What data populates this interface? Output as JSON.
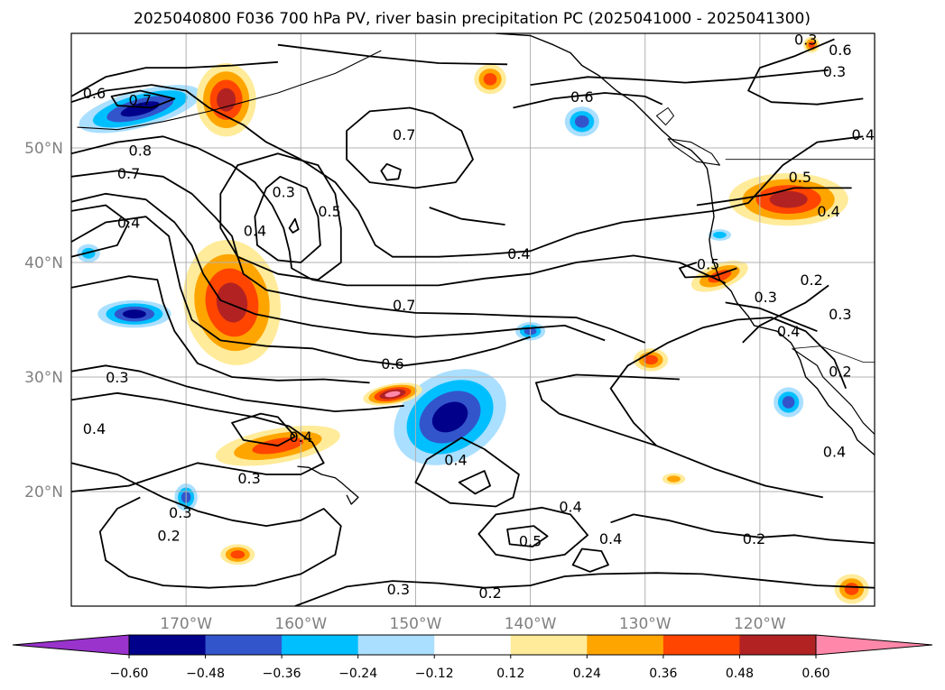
{
  "chart_data": {
    "type": "contour",
    "title": "2025040800 F036 700 hPa PV, river basin precipitation PC (2025041000 - 2025041300)",
    "xlabel": "",
    "ylabel": "",
    "xlim": [
      -180,
      -110
    ],
    "ylim": [
      10,
      60
    ],
    "grid": true,
    "lon_ticks": [
      {
        "value": -170,
        "label": "170°W"
      },
      {
        "value": -160,
        "label": "160°W"
      },
      {
        "value": -150,
        "label": "150°W"
      },
      {
        "value": -140,
        "label": "140°W"
      },
      {
        "value": -130,
        "label": "130°W"
      },
      {
        "value": -120,
        "label": "120°W"
      }
    ],
    "lat_ticks": [
      {
        "value": 50,
        "label": "50°N"
      },
      {
        "value": 40,
        "label": "40°N"
      },
      {
        "value": 30,
        "label": "30°N"
      },
      {
        "value": 20,
        "label": "20°N"
      }
    ],
    "colorbar": {
      "levels": [
        -0.6,
        -0.48,
        -0.36,
        -0.24,
        -0.12,
        0.12,
        0.24,
        0.36,
        0.48,
        0.6
      ],
      "tick_labels": [
        "−0.60",
        "−0.48",
        "−0.36",
        "−0.24",
        "−0.12",
        "0.12",
        "0.24",
        "0.36",
        "0.48",
        "0.60"
      ],
      "colors": [
        "#9933cc",
        "#00008b",
        "#3355cc",
        "#00bfff",
        "#aadfff",
        "#ffffff",
        "#ffeb99",
        "#ffa500",
        "#ff4500",
        "#b22222",
        "#ff88aa"
      ],
      "extend": "both"
    },
    "contour_labels": [
      {
        "text": "0.6",
        "lon": -178,
        "lat": 54.8
      },
      {
        "text": "0.7",
        "lon": -174,
        "lat": 54.2
      },
      {
        "text": "0.8",
        "lon": -174,
        "lat": 49.8
      },
      {
        "text": "0.7",
        "lon": -175,
        "lat": 47.8
      },
      {
        "text": "0.4",
        "lon": -175,
        "lat": 43.5
      },
      {
        "text": "0.3",
        "lon": -161.5,
        "lat": 46.2
      },
      {
        "text": "0.4",
        "lon": -164,
        "lat": 42.8
      },
      {
        "text": "0.5",
        "lon": -157.5,
        "lat": 44.5
      },
      {
        "text": "0.7",
        "lon": -151,
        "lat": 51.2
      },
      {
        "text": "0.6",
        "lon": -135.5,
        "lat": 54.5
      },
      {
        "text": "0.4",
        "lon": -141,
        "lat": 40.8
      },
      {
        "text": "0.7",
        "lon": -151,
        "lat": 36.3
      },
      {
        "text": "0.6",
        "lon": -152,
        "lat": 31.2
      },
      {
        "text": "0.3",
        "lon": -176,
        "lat": 30
      },
      {
        "text": "0.4",
        "lon": -178,
        "lat": 25.5
      },
      {
        "text": "0.4",
        "lon": -160,
        "lat": 24.8
      },
      {
        "text": "0.3",
        "lon": -164.5,
        "lat": 21.2
      },
      {
        "text": "0.3",
        "lon": -170.5,
        "lat": 18.2
      },
      {
        "text": "0.2",
        "lon": -171.5,
        "lat": 16.2
      },
      {
        "text": "0.4",
        "lon": -146.5,
        "lat": 22.8
      },
      {
        "text": "0.4",
        "lon": -136.5,
        "lat": 18.7
      },
      {
        "text": "0.5",
        "lon": -140,
        "lat": 15.7
      },
      {
        "text": "0.4",
        "lon": -133,
        "lat": 15.9
      },
      {
        "text": "0.2",
        "lon": -120.5,
        "lat": 15.9
      },
      {
        "text": "0.3",
        "lon": -151.5,
        "lat": 11.5
      },
      {
        "text": "0.2",
        "lon": -143.5,
        "lat": 11.2
      },
      {
        "text": "0.5",
        "lon": -124.5,
        "lat": 39.9
      },
      {
        "text": "0.3",
        "lon": -119.5,
        "lat": 37
      },
      {
        "text": "0.2",
        "lon": -115.5,
        "lat": 38.5
      },
      {
        "text": "0.4",
        "lon": -117.5,
        "lat": 34
      },
      {
        "text": "0.3",
        "lon": -113,
        "lat": 35.5
      },
      {
        "text": "0.2",
        "lon": -113,
        "lat": 30.5
      },
      {
        "text": "0.4",
        "lon": -113.5,
        "lat": 23.5
      },
      {
        "text": "0.5",
        "lon": -116.5,
        "lat": 47.5
      },
      {
        "text": "0.4",
        "lon": -114,
        "lat": 44.5
      },
      {
        "text": "0.4",
        "lon": -111,
        "lat": 51.2
      },
      {
        "text": "0.3",
        "lon": -116,
        "lat": 59.5
      },
      {
        "text": "0.6",
        "lon": -113,
        "lat": 58.6
      },
      {
        "text": "0.3",
        "lon": -113.5,
        "lat": 56.7
      }
    ]
  }
}
